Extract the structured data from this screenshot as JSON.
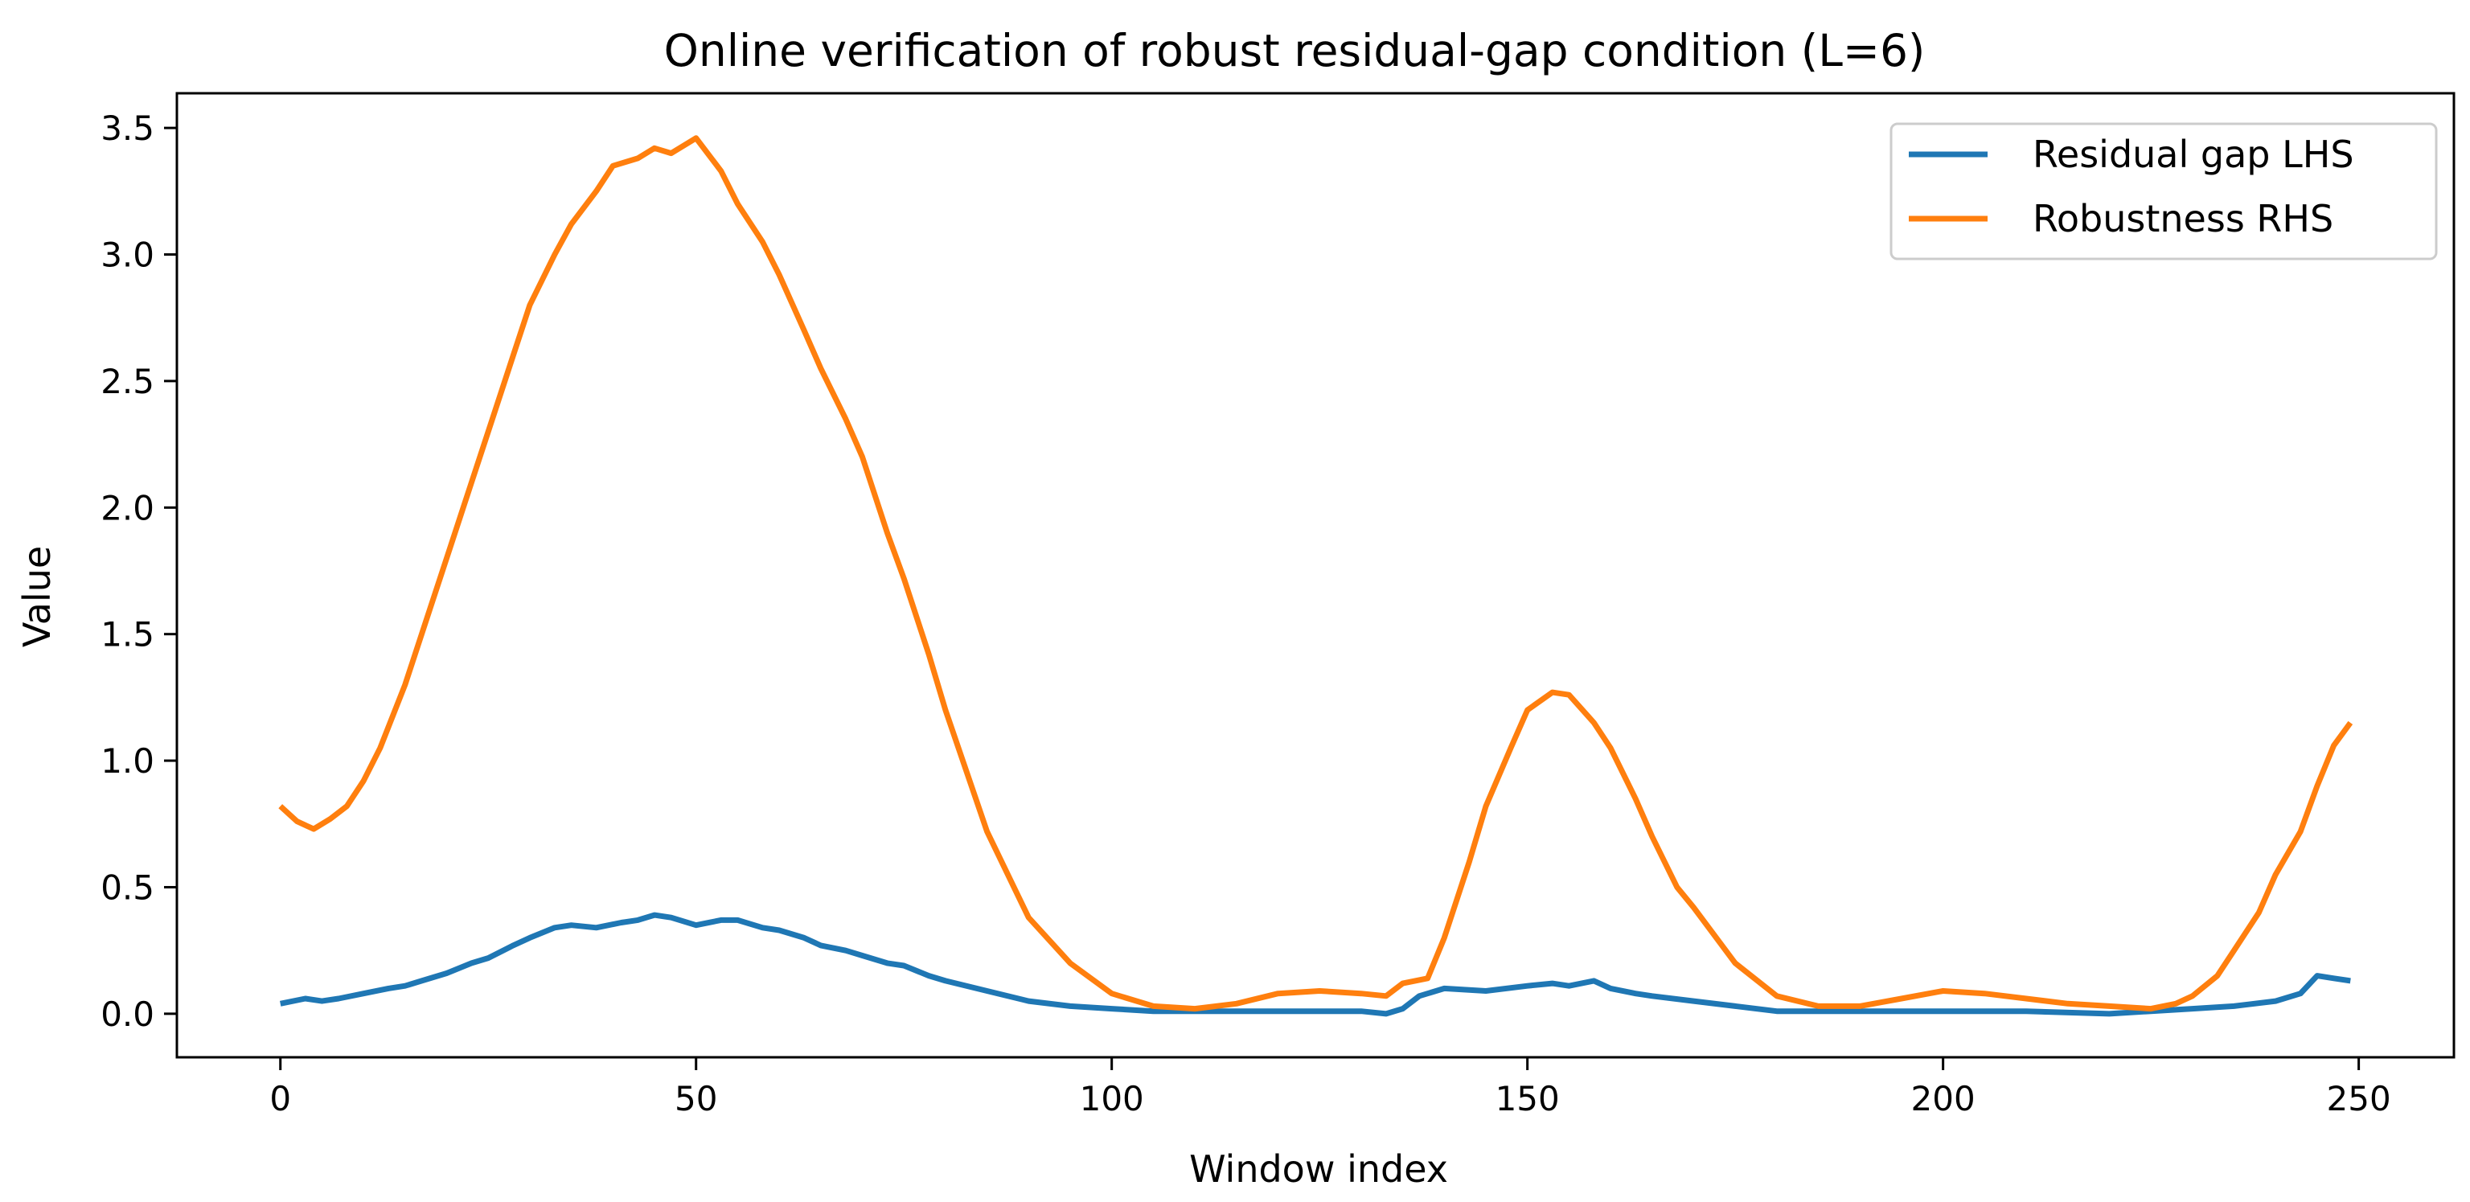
{
  "chart_data": {
    "type": "line",
    "title": "Online verification of robust residual-gap condition (L=6)",
    "xlabel": "Window index",
    "ylabel": "Value",
    "xlim": [
      -12.45,
      261.45
    ],
    "ylim": [
      -0.172,
      3.637
    ],
    "xticks": [
      0,
      50,
      100,
      150,
      200,
      250
    ],
    "xtick_labels": [
      "0",
      "50",
      "100",
      "150",
      "200",
      "250"
    ],
    "yticks": [
      0.0,
      0.5,
      1.0,
      1.5,
      2.0,
      2.5,
      3.0,
      3.5
    ],
    "ytick_labels": [
      "0.0",
      "0.5",
      "1.0",
      "1.5",
      "2.0",
      "2.5",
      "3.0",
      "3.5"
    ],
    "grid": false,
    "legend_position": "top-right",
    "series": [
      {
        "name": "Residual gap LHS",
        "color": "#1f77b4",
        "x": [
          0,
          3,
          5,
          7,
          10,
          13,
          15,
          17,
          20,
          23,
          25,
          28,
          30,
          33,
          35,
          38,
          41,
          43,
          45,
          47,
          50,
          53,
          55,
          58,
          60,
          63,
          65,
          68,
          70,
          73,
          75,
          78,
          80,
          85,
          90,
          95,
          100,
          105,
          110,
          115,
          120,
          125,
          130,
          133,
          135,
          137,
          140,
          145,
          150,
          153,
          155,
          158,
          160,
          163,
          165,
          170,
          175,
          180,
          190,
          200,
          210,
          220,
          225,
          230,
          235,
          240,
          243,
          245,
          247,
          249
        ],
        "y": [
          0.04,
          0.06,
          0.05,
          0.06,
          0.08,
          0.1,
          0.11,
          0.13,
          0.16,
          0.2,
          0.22,
          0.27,
          0.3,
          0.34,
          0.35,
          0.34,
          0.36,
          0.37,
          0.39,
          0.38,
          0.35,
          0.37,
          0.37,
          0.34,
          0.33,
          0.3,
          0.27,
          0.25,
          0.23,
          0.2,
          0.19,
          0.15,
          0.13,
          0.09,
          0.05,
          0.03,
          0.02,
          0.01,
          0.01,
          0.01,
          0.01,
          0.01,
          0.01,
          0.0,
          0.02,
          0.07,
          0.1,
          0.09,
          0.11,
          0.12,
          0.11,
          0.13,
          0.1,
          0.08,
          0.07,
          0.05,
          0.03,
          0.01,
          0.01,
          0.01,
          0.01,
          0.0,
          0.01,
          0.02,
          0.03,
          0.05,
          0.08,
          0.15,
          0.14,
          0.13
        ]
      },
      {
        "name": "Robustness RHS",
        "color": "#ff7f0e",
        "x": [
          0,
          2,
          4,
          6,
          8,
          10,
          12,
          15,
          18,
          20,
          23,
          25,
          28,
          30,
          33,
          35,
          38,
          40,
          43,
          45,
          47,
          50,
          53,
          55,
          58,
          60,
          63,
          65,
          68,
          70,
          73,
          75,
          78,
          80,
          85,
          90,
          95,
          100,
          105,
          110,
          115,
          120,
          125,
          130,
          133,
          135,
          138,
          140,
          143,
          145,
          148,
          150,
          153,
          155,
          158,
          160,
          163,
          165,
          168,
          170,
          175,
          180,
          185,
          190,
          195,
          200,
          205,
          210,
          215,
          220,
          225,
          228,
          230,
          233,
          235,
          238,
          240,
          243,
          245,
          247,
          249
        ],
        "y": [
          0.82,
          0.76,
          0.73,
          0.77,
          0.82,
          0.92,
          1.05,
          1.3,
          1.6,
          1.8,
          2.1,
          2.3,
          2.6,
          2.8,
          3.0,
          3.12,
          3.25,
          3.35,
          3.38,
          3.42,
          3.4,
          3.46,
          3.33,
          3.2,
          3.05,
          2.92,
          2.7,
          2.55,
          2.35,
          2.2,
          1.9,
          1.72,
          1.42,
          1.2,
          0.72,
          0.38,
          0.2,
          0.08,
          0.03,
          0.02,
          0.04,
          0.08,
          0.09,
          0.08,
          0.07,
          0.12,
          0.14,
          0.3,
          0.6,
          0.82,
          1.05,
          1.2,
          1.27,
          1.26,
          1.15,
          1.05,
          0.85,
          0.7,
          0.5,
          0.42,
          0.2,
          0.07,
          0.03,
          0.03,
          0.06,
          0.09,
          0.08,
          0.06,
          0.04,
          0.03,
          0.02,
          0.04,
          0.07,
          0.15,
          0.25,
          0.4,
          0.55,
          0.72,
          0.9,
          1.06,
          1.15
        ]
      }
    ]
  }
}
